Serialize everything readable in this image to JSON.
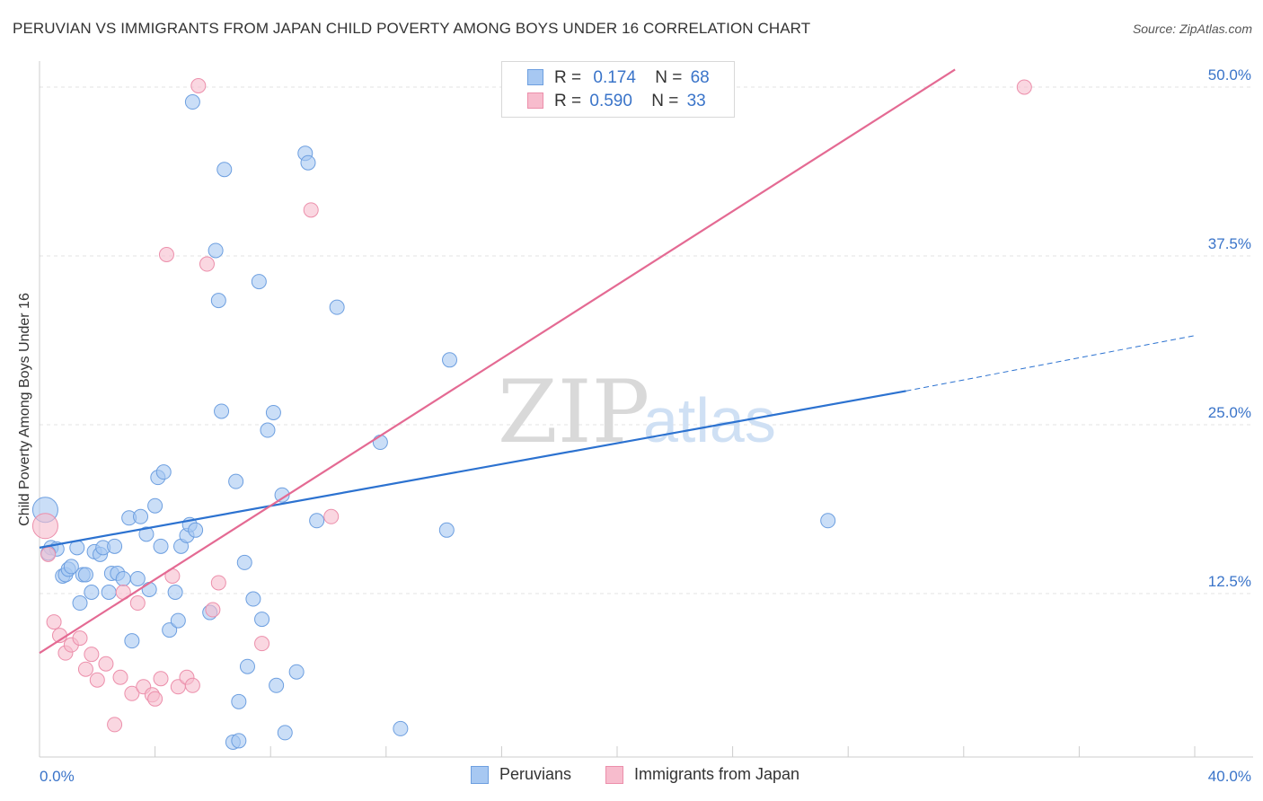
{
  "header": {
    "title": "PERUVIAN VS IMMIGRANTS FROM JAPAN CHILD POVERTY AMONG BOYS UNDER 16 CORRELATION CHART",
    "source": "Source: ZipAtlas.com"
  },
  "colors": {
    "peruvians_fill": "#a7c8f2",
    "peruvians_stroke": "#6d9fe0",
    "peruvians_line": "#2c72d0",
    "japan_fill": "#f7bccd",
    "japan_stroke": "#ec8fab",
    "japan_line": "#e46a93",
    "tick_label": "#3a74c9",
    "grid": "#e3e3e3",
    "watermark": "#d9d9d9"
  },
  "legend_top": {
    "rows": [
      {
        "r_label": "R =",
        "r_value": "0.174",
        "n_label": "N =",
        "n_value": "68"
      },
      {
        "r_label": "R =",
        "r_value": "0.590",
        "n_label": "N =",
        "n_value": "33"
      }
    ]
  },
  "legend_bottom": {
    "items": [
      "Peruvians",
      "Immigrants from Japan"
    ]
  },
  "watermark": {
    "zip": "ZIP",
    "atlas": "atlas"
  },
  "chart_data": {
    "type": "scatter",
    "title": "PERUVIAN VS IMMIGRANTS FROM JAPAN CHILD POVERTY AMONG BOYS UNDER 16 CORRELATION CHART",
    "xlabel": "",
    "ylabel": "Child Poverty Among Boys Under 16",
    "xlim": [
      0,
      40
    ],
    "ylim": [
      0,
      50
    ],
    "x_tick_labels": [
      "0.0%",
      "40.0%"
    ],
    "y_tick_labels": [
      "12.5%",
      "25.0%",
      "37.5%",
      "50.0%"
    ],
    "y_ticks": [
      12.5,
      25.0,
      37.5,
      50.0
    ],
    "grid": true,
    "legend_position": "top-center",
    "series": [
      {
        "name": "Peruvians",
        "color": "#a7c8f2",
        "stats": {
          "R": 0.174,
          "N": 68
        },
        "trend": {
          "x0": 0,
          "y0": 15.9,
          "x1": 30,
          "y1": 27.5,
          "dashed_to_x": 40,
          "dashed_to_y": 31.6
        },
        "points": [
          [
            0.2,
            18.7
          ],
          [
            0.4,
            15.9
          ],
          [
            0.6,
            15.8
          ],
          [
            0.8,
            13.8
          ],
          [
            0.9,
            13.9
          ],
          [
            1.0,
            14.3
          ],
          [
            1.1,
            14.5
          ],
          [
            1.3,
            15.9
          ],
          [
            1.4,
            11.8
          ],
          [
            1.5,
            13.9
          ],
          [
            1.6,
            13.9
          ],
          [
            1.8,
            12.6
          ],
          [
            1.9,
            15.6
          ],
          [
            2.1,
            15.4
          ],
          [
            2.2,
            15.9
          ],
          [
            2.4,
            12.6
          ],
          [
            2.5,
            14.0
          ],
          [
            2.6,
            16.0
          ],
          [
            2.7,
            14.0
          ],
          [
            2.9,
            13.6
          ],
          [
            3.1,
            18.1
          ],
          [
            3.2,
            9.0
          ],
          [
            3.4,
            13.6
          ],
          [
            3.5,
            18.2
          ],
          [
            3.7,
            16.9
          ],
          [
            3.8,
            12.8
          ],
          [
            4.0,
            19.0
          ],
          [
            4.1,
            21.1
          ],
          [
            4.2,
            16.0
          ],
          [
            4.3,
            21.5
          ],
          [
            4.5,
            9.8
          ],
          [
            4.7,
            12.6
          ],
          [
            4.8,
            10.5
          ],
          [
            4.9,
            16.0
          ],
          [
            5.1,
            16.8
          ],
          [
            5.2,
            17.6
          ],
          [
            5.4,
            17.2
          ],
          [
            5.3,
            48.9
          ],
          [
            5.9,
            11.1
          ],
          [
            6.1,
            37.9
          ],
          [
            6.2,
            34.2
          ],
          [
            6.3,
            26.0
          ],
          [
            6.4,
            43.9
          ],
          [
            6.7,
            1.5
          ],
          [
            6.8,
            20.8
          ],
          [
            6.9,
            4.5
          ],
          [
            6.9,
            1.6
          ],
          [
            7.1,
            14.8
          ],
          [
            7.2,
            7.1
          ],
          [
            7.4,
            12.1
          ],
          [
            7.6,
            35.6
          ],
          [
            7.7,
            10.6
          ],
          [
            7.9,
            24.6
          ],
          [
            8.1,
            25.9
          ],
          [
            8.2,
            5.7
          ],
          [
            8.4,
            19.8
          ],
          [
            8.5,
            2.2
          ],
          [
            8.9,
            6.7
          ],
          [
            9.2,
            45.1
          ],
          [
            9.3,
            44.4
          ],
          [
            9.6,
            17.9
          ],
          [
            10.3,
            33.7
          ],
          [
            11.8,
            23.7
          ],
          [
            12.5,
            2.5
          ],
          [
            14.2,
            29.8
          ],
          [
            14.1,
            17.2
          ],
          [
            27.3,
            17.9
          ],
          [
            0.3,
            15.5
          ]
        ]
      },
      {
        "name": "Immigrants from Japan",
        "color": "#f7bccd",
        "stats": {
          "R": 0.59,
          "N": 33
        },
        "trend": {
          "x0": 0,
          "y0": 8.1,
          "x1": 31.7,
          "y1": 51.3
        },
        "points": [
          [
            0.2,
            17.5
          ],
          [
            0.3,
            15.4
          ],
          [
            0.5,
            10.4
          ],
          [
            0.7,
            9.4
          ],
          [
            0.9,
            8.1
          ],
          [
            1.1,
            8.7
          ],
          [
            1.4,
            9.2
          ],
          [
            1.6,
            6.9
          ],
          [
            1.8,
            8.0
          ],
          [
            2.0,
            6.1
          ],
          [
            2.3,
            7.3
          ],
          [
            2.6,
            2.8
          ],
          [
            2.8,
            6.3
          ],
          [
            2.9,
            12.6
          ],
          [
            3.2,
            5.1
          ],
          [
            3.4,
            11.8
          ],
          [
            3.6,
            5.6
          ],
          [
            3.9,
            5.0
          ],
          [
            4.0,
            4.7
          ],
          [
            4.2,
            6.2
          ],
          [
            4.4,
            37.6
          ],
          [
            4.6,
            13.8
          ],
          [
            4.8,
            5.6
          ],
          [
            5.1,
            6.3
          ],
          [
            5.3,
            5.7
          ],
          [
            5.5,
            50.1
          ],
          [
            5.8,
            36.9
          ],
          [
            6.0,
            11.3
          ],
          [
            6.2,
            13.3
          ],
          [
            7.7,
            8.8
          ],
          [
            9.4,
            40.9
          ],
          [
            10.1,
            18.2
          ],
          [
            34.1,
            50.0
          ]
        ]
      }
    ]
  }
}
